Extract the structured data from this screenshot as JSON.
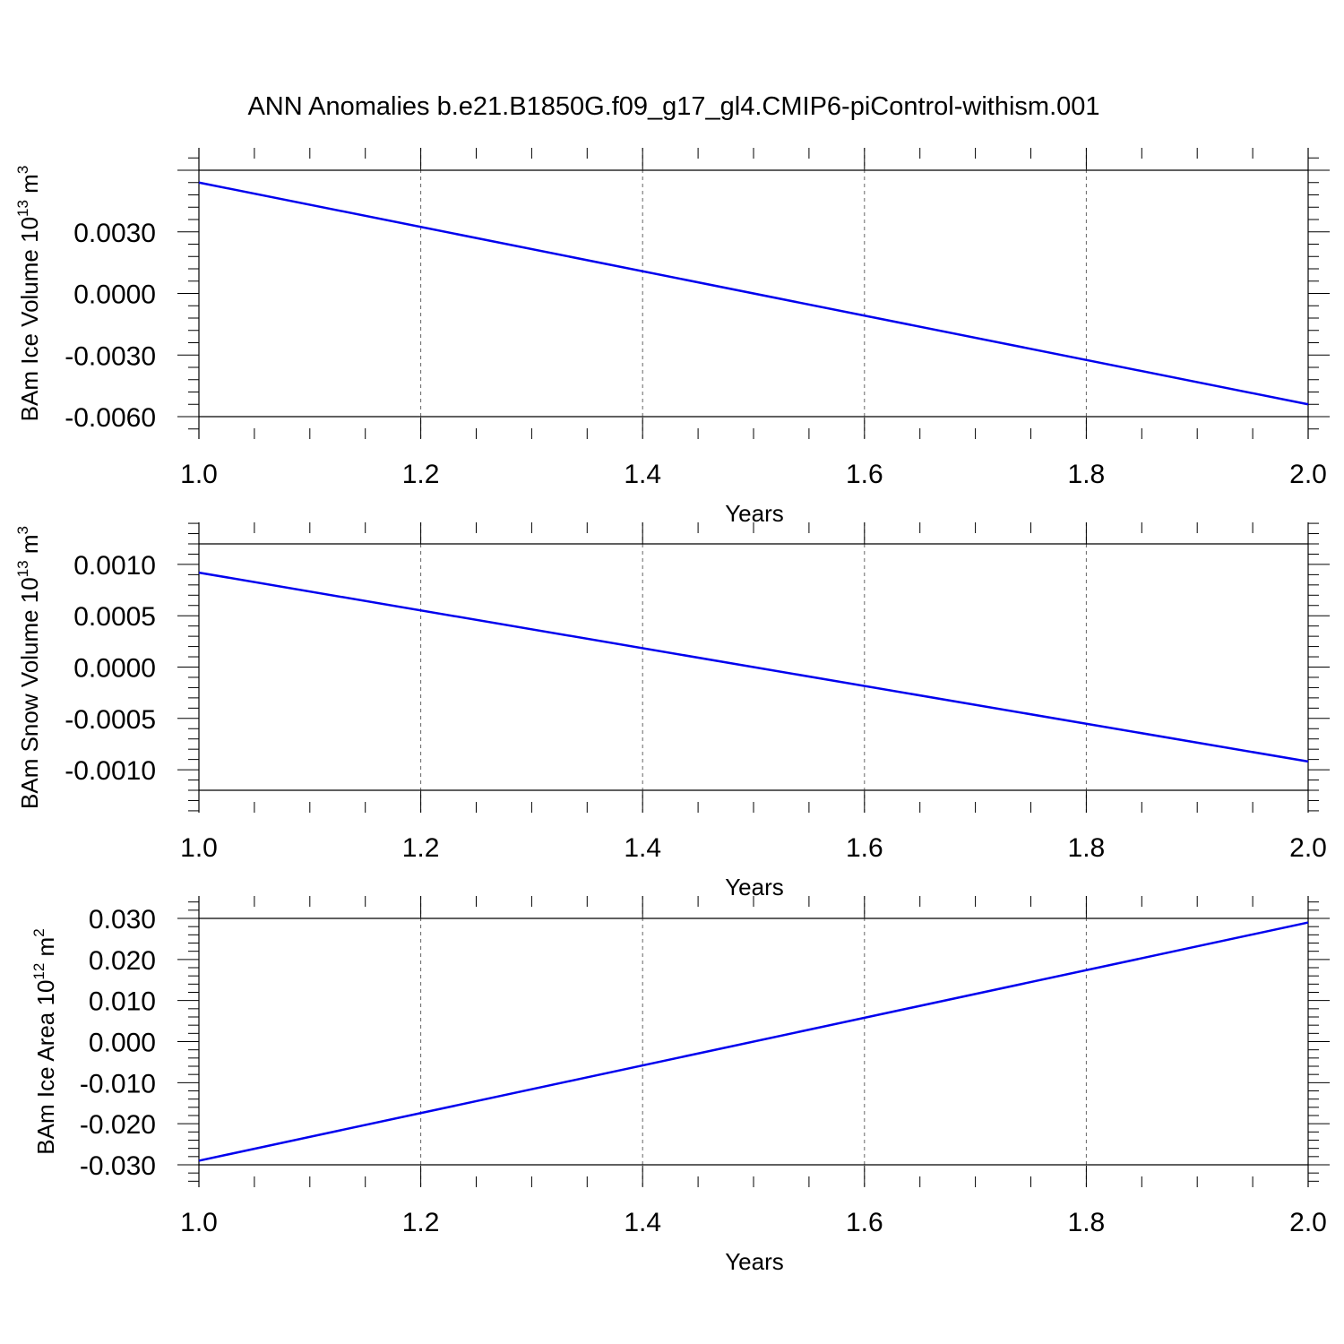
{
  "title": "ANN Anomalies b.e21.B1850G.f09_g17_gl4.CMIP6-piControl-withism.001",
  "colors": {
    "line": "#0000ee",
    "axis": "#000000",
    "grid": "#666666"
  },
  "chart_data": [
    {
      "type": "line",
      "ylabel_main": "BAm Ice Volume 10",
      "ylabel_sup": "13",
      "ylabel_unit": " m",
      "ylabel_unit_sup": "3",
      "xlabel": "Years",
      "xlim": [
        1.0,
        2.0
      ],
      "ylim": [
        -0.006,
        0.006
      ],
      "xticks": [
        "1.0",
        "1.2",
        "1.4",
        "1.6",
        "1.8",
        "2.0"
      ],
      "yticks": [
        "0.0030",
        "0.0000",
        "-0.0030",
        "-0.0060"
      ],
      "grid": "vertical-dashed",
      "series": [
        {
          "x": [
            1.0,
            2.0
          ],
          "y": [
            0.0054,
            -0.0054
          ]
        }
      ]
    },
    {
      "type": "line",
      "ylabel_main": "BAm Snow Volume 10",
      "ylabel_sup": "13",
      "ylabel_unit": " m",
      "ylabel_unit_sup": "3",
      "xlabel": "Years",
      "xlim": [
        1.0,
        2.0
      ],
      "ylim": [
        -0.0012,
        0.0012
      ],
      "xticks": [
        "1.0",
        "1.2",
        "1.4",
        "1.6",
        "1.8",
        "2.0"
      ],
      "yticks": [
        "0.0010",
        "0.0005",
        "0.0000",
        "-0.0005",
        "-0.0010"
      ],
      "grid": "vertical-dashed",
      "series": [
        {
          "x": [
            1.0,
            2.0
          ],
          "y": [
            0.00092,
            -0.00092
          ]
        }
      ]
    },
    {
      "type": "line",
      "ylabel_main": "BAm Ice Area 10",
      "ylabel_sup": "12",
      "ylabel_unit": " m",
      "ylabel_unit_sup": "2",
      "xlabel": "Years",
      "xlim": [
        1.0,
        2.0
      ],
      "ylim": [
        -0.03,
        0.03
      ],
      "xticks": [
        "1.0",
        "1.2",
        "1.4",
        "1.6",
        "1.8",
        "2.0"
      ],
      "yticks": [
        "0.030",
        "0.020",
        "0.010",
        "0.000",
        "-0.010",
        "-0.020",
        "-0.030"
      ],
      "grid": "vertical-dashed",
      "series": [
        {
          "x": [
            1.0,
            2.0
          ],
          "y": [
            -0.029,
            0.029
          ]
        }
      ]
    }
  ]
}
